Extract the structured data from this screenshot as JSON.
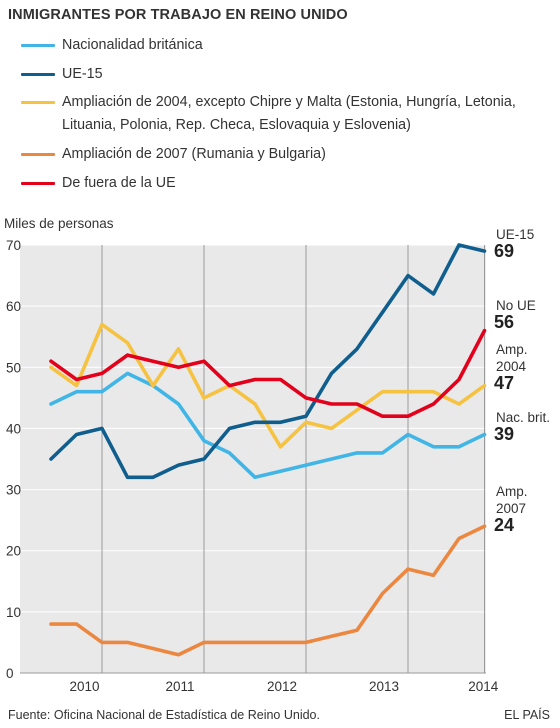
{
  "title": "INMIGRANTES POR TRABAJO EN REINO UNIDO",
  "legend": [
    {
      "label": "Nacionalidad británica",
      "color": "#41b6e6"
    },
    {
      "label": "UE-15",
      "color": "#0f5e8e"
    },
    {
      "label": "Ampliación de 2004, excepto Chipre y Malta (Estonia, Hungría, Letonia, Lituania, Polonia, Rep. Checa, Eslovaquia y Eslovenia)",
      "color": "#f5c242"
    },
    {
      "label": "Ampliación de 2007 (Rumania y Bulgaria)",
      "color": "#ec8740"
    },
    {
      "label": "De fuera de la UE",
      "color": "#e3001b"
    }
  ],
  "footer": {
    "source": "Fuente: Oficina Nacional de Estadística de Reino Unido.",
    "brand": "EL PAÍS"
  },
  "chart_data": {
    "type": "line",
    "ylabel": "Miles de personas",
    "ylim": [
      0,
      70
    ],
    "yticks": [
      0,
      10,
      20,
      30,
      40,
      50,
      60,
      70
    ],
    "x_tick_labels": [
      "2010",
      "2011",
      "2012",
      "2013",
      "2014"
    ],
    "x_count": 18,
    "x_year_boundaries": [
      2,
      6,
      10,
      14,
      17
    ],
    "grid": true,
    "series": [
      {
        "name": "Nacionalidad británica",
        "end_label": "Nac. brit.",
        "end_value": "39",
        "color": "#41b6e6",
        "values": [
          44,
          46,
          46,
          49,
          47,
          44,
          38,
          36,
          32,
          33,
          34,
          35,
          36,
          36,
          39,
          37,
          37,
          39
        ]
      },
      {
        "name": "UE-15",
        "end_label": "UE-15",
        "end_value": "69",
        "color": "#0f5e8e",
        "values": [
          35,
          39,
          40,
          32,
          32,
          34,
          35,
          40,
          41,
          41,
          42,
          49,
          53,
          59,
          65,
          62,
          70,
          69
        ]
      },
      {
        "name": "Ampliación de 2004",
        "end_label": "Amp. 2004",
        "end_value": "47",
        "color": "#f5c242",
        "values": [
          50,
          47,
          57,
          54,
          47,
          53,
          45,
          47,
          44,
          37,
          41,
          40,
          43,
          46,
          46,
          46,
          44,
          47
        ]
      },
      {
        "name": "Ampliación de 2007",
        "end_label": "Amp. 2007",
        "end_value": "24",
        "color": "#ec8740",
        "values": [
          8,
          8,
          5,
          5,
          4,
          3,
          5,
          5,
          5,
          5,
          5,
          6,
          7,
          13,
          17,
          16,
          22,
          24
        ]
      },
      {
        "name": "De fuera de la UE",
        "end_label": "No UE",
        "end_value": "56",
        "color": "#e3001b",
        "values": [
          51,
          48,
          49,
          52,
          51,
          50,
          51,
          47,
          48,
          48,
          45,
          44,
          44,
          42,
          42,
          44,
          48,
          56
        ]
      }
    ]
  }
}
